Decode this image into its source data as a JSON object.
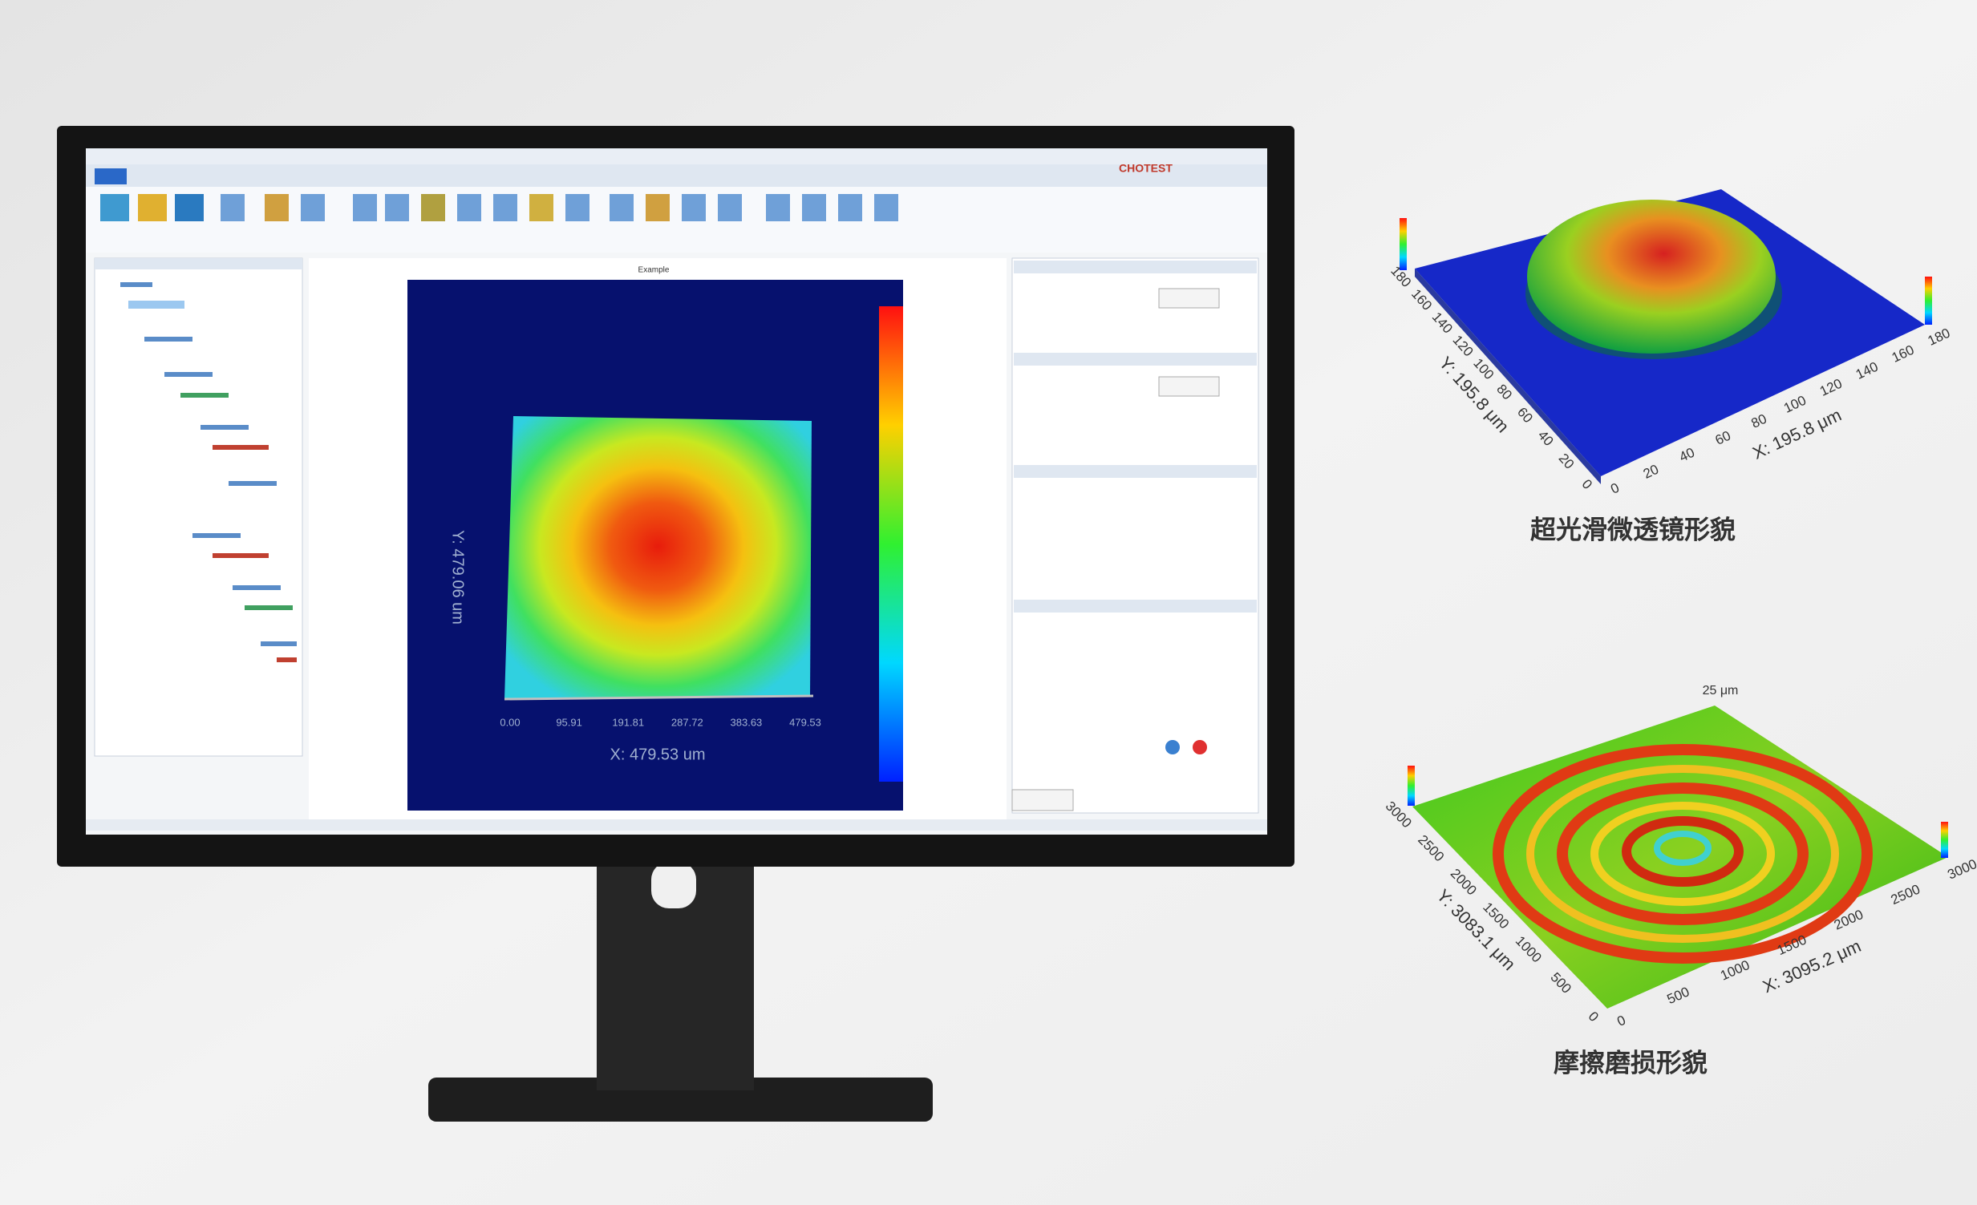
{
  "screen": {
    "logo": "CHOTEST",
    "plot": {
      "title": "Example",
      "x_label": "X: 479.53 um",
      "y_label": "Y: 479.06 um",
      "x_ticks": [
        "0.00",
        "95.91",
        "191.81",
        "287.72",
        "383.63",
        "479.53"
      ]
    }
  },
  "samples": [
    {
      "caption": "超光滑微透镜形貌",
      "x_label": "X: 195.8 μm",
      "y_label": "Y: 195.8 μm",
      "ticks": [
        "0",
        "20",
        "40",
        "60",
        "80",
        "100",
        "120",
        "140",
        "160",
        "180"
      ]
    },
    {
      "caption": "摩擦磨损形貌",
      "x_label": "X: 3095.2 μm",
      "y_label": "Y: 3083.1 μm",
      "z_label": "25 μm",
      "ticks": [
        "0",
        "500",
        "1000",
        "1500",
        "2000",
        "2500",
        "3000"
      ]
    }
  ]
}
